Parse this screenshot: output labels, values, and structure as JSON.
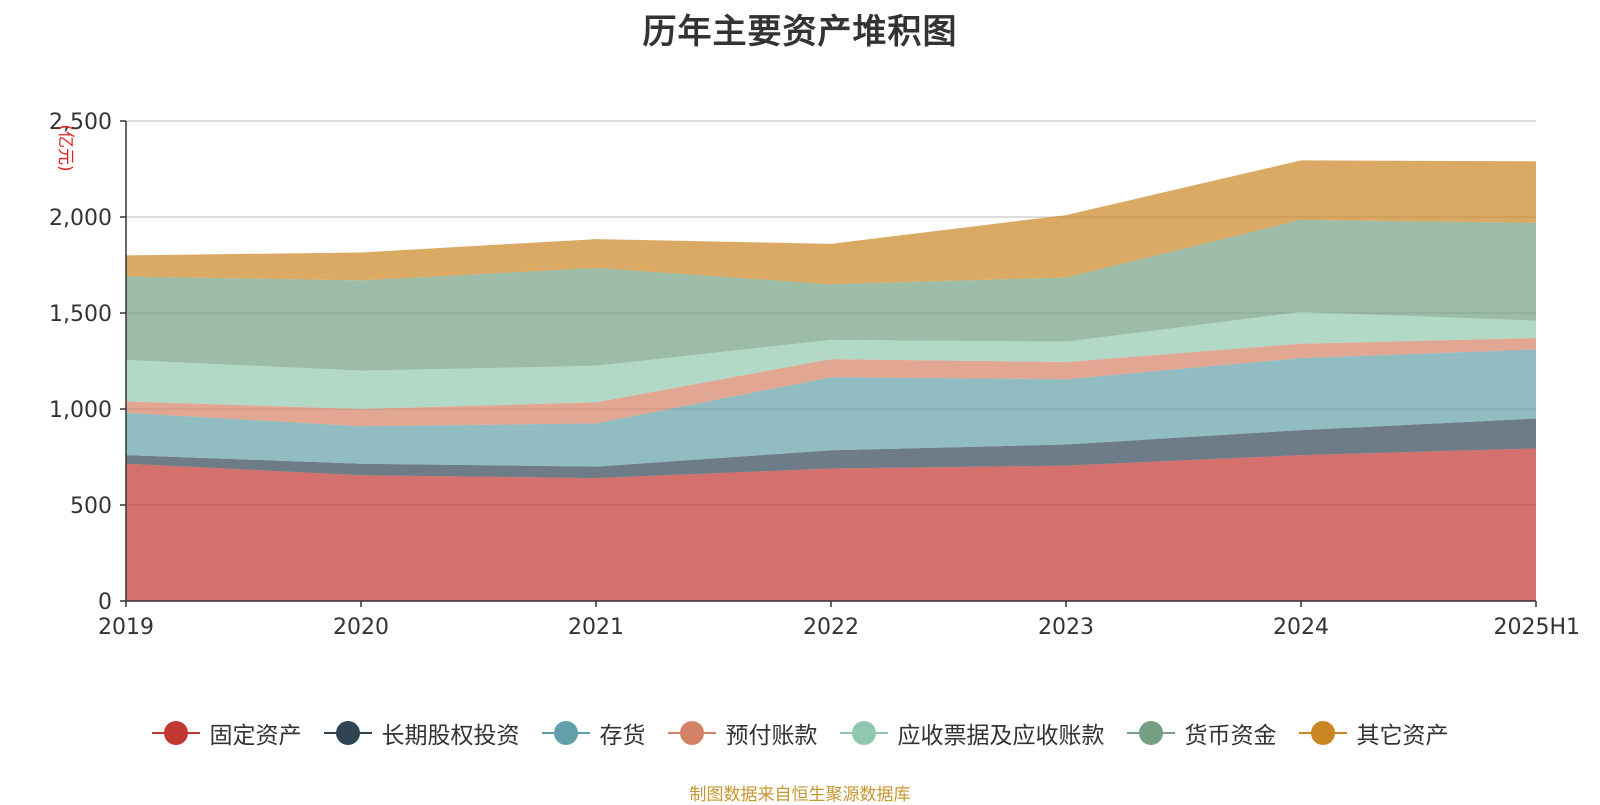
{
  "chart_data": {
    "type": "area",
    "stacked": true,
    "title": "历年主要资产堆积图",
    "ylabel": "(亿元)",
    "xlabel": "",
    "categories": [
      "2019",
      "2020",
      "2021",
      "2022",
      "2023",
      "2024",
      "2025H1"
    ],
    "ylim": [
      0,
      2500
    ],
    "yticks": [
      0,
      500,
      1000,
      1500,
      2000,
      2500
    ],
    "ytick_labels": [
      "0",
      "500",
      "1,000",
      "1,500",
      "2,000",
      "2,500"
    ],
    "grid": true,
    "legend_position": "bottom",
    "series": [
      {
        "name": "固定资产",
        "color": "#c23531",
        "values": [
          715,
          655,
          640,
          690,
          705,
          760,
          795
        ]
      },
      {
        "name": "长期股权投资",
        "color": "#2f4554",
        "values": [
          45,
          60,
          60,
          95,
          110,
          130,
          155
        ]
      },
      {
        "name": "存货",
        "color": "#61a0a8",
        "values": [
          220,
          195,
          225,
          380,
          340,
          375,
          360
        ]
      },
      {
        "name": "预付账款",
        "color": "#d48265",
        "values": [
          60,
          90,
          110,
          95,
          90,
          75,
          60
        ]
      },
      {
        "name": "应收票据及应收账款",
        "color": "#91c7ae",
        "values": [
          215,
          200,
          190,
          100,
          105,
          165,
          90
        ]
      },
      {
        "name": "货币资金",
        "color": "#749f83",
        "values": [
          435,
          470,
          510,
          290,
          335,
          480,
          510
        ]
      },
      {
        "name": "其它资产",
        "color": "#ca8622",
        "values": [
          110,
          145,
          150,
          210,
          325,
          310,
          320
        ]
      }
    ]
  },
  "source_note": "制图数据来自恒生聚源数据库"
}
